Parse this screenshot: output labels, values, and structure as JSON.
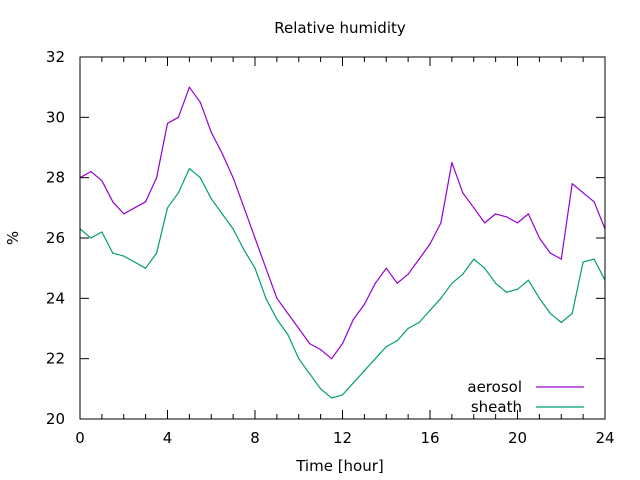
{
  "chart_data": {
    "type": "line",
    "title": "Relative humidity",
    "xlabel": "Time [hour]",
    "ylabel": "%",
    "xlim": [
      0,
      24
    ],
    "ylim": [
      20,
      32
    ],
    "xticks": [
      0,
      4,
      8,
      12,
      16,
      20,
      24
    ],
    "yticks": [
      20,
      22,
      24,
      26,
      28,
      30,
      32
    ],
    "grid": false,
    "legend_position": "bottom-right",
    "series": [
      {
        "name": "aerosol",
        "color": "#9400d3",
        "x": [
          0,
          0.5,
          1,
          1.5,
          2,
          2.5,
          3,
          3.5,
          4,
          4.5,
          5,
          5.5,
          6,
          6.5,
          7,
          7.5,
          8,
          8.5,
          9,
          9.5,
          10,
          10.5,
          11,
          11.5,
          12,
          12.5,
          13,
          13.5,
          14,
          14.5,
          15,
          15.5,
          16,
          16.5,
          17,
          17.5,
          18,
          18.5,
          19,
          19.5,
          20,
          20.5,
          21,
          21.5,
          22,
          22.5,
          23,
          23.5,
          24
        ],
        "y": [
          28.0,
          28.2,
          27.9,
          27.2,
          26.8,
          27.0,
          27.2,
          28.0,
          29.8,
          30.0,
          31.0,
          30.5,
          29.5,
          28.8,
          28.0,
          27.0,
          26.0,
          25.0,
          24.0,
          23.5,
          23.0,
          22.5,
          22.3,
          22.0,
          22.5,
          23.3,
          23.8,
          24.5,
          25.0,
          24.5,
          24.8,
          25.3,
          25.8,
          26.5,
          28.5,
          27.5,
          27.0,
          26.5,
          26.8,
          26.7,
          26.5,
          26.8,
          26.0,
          25.5,
          25.3,
          27.8,
          27.5,
          27.2,
          26.3
        ]
      },
      {
        "name": "sheath",
        "color": "#009e73",
        "x": [
          0,
          0.5,
          1,
          1.5,
          2,
          2.5,
          3,
          3.5,
          4,
          4.5,
          5,
          5.5,
          6,
          6.5,
          7,
          7.5,
          8,
          8.5,
          9,
          9.5,
          10,
          10.5,
          11,
          11.5,
          12,
          12.5,
          13,
          13.5,
          14,
          14.5,
          15,
          15.5,
          16,
          16.5,
          17,
          17.5,
          18,
          18.5,
          19,
          19.5,
          20,
          20.5,
          21,
          21.5,
          22,
          22.5,
          23,
          23.5,
          24
        ],
        "y": [
          26.3,
          26.0,
          26.2,
          25.5,
          25.4,
          25.2,
          25.0,
          25.5,
          27.0,
          27.5,
          28.3,
          28.0,
          27.3,
          26.8,
          26.3,
          25.6,
          25.0,
          24.0,
          23.3,
          22.8,
          22.0,
          21.5,
          21.0,
          20.7,
          20.8,
          21.2,
          21.6,
          22.0,
          22.4,
          22.6,
          23.0,
          23.2,
          23.6,
          24.0,
          24.5,
          24.8,
          25.3,
          25.0,
          24.5,
          24.2,
          24.3,
          24.6,
          24.0,
          23.5,
          23.2,
          23.5,
          25.2,
          25.3,
          24.6
        ]
      }
    ]
  }
}
